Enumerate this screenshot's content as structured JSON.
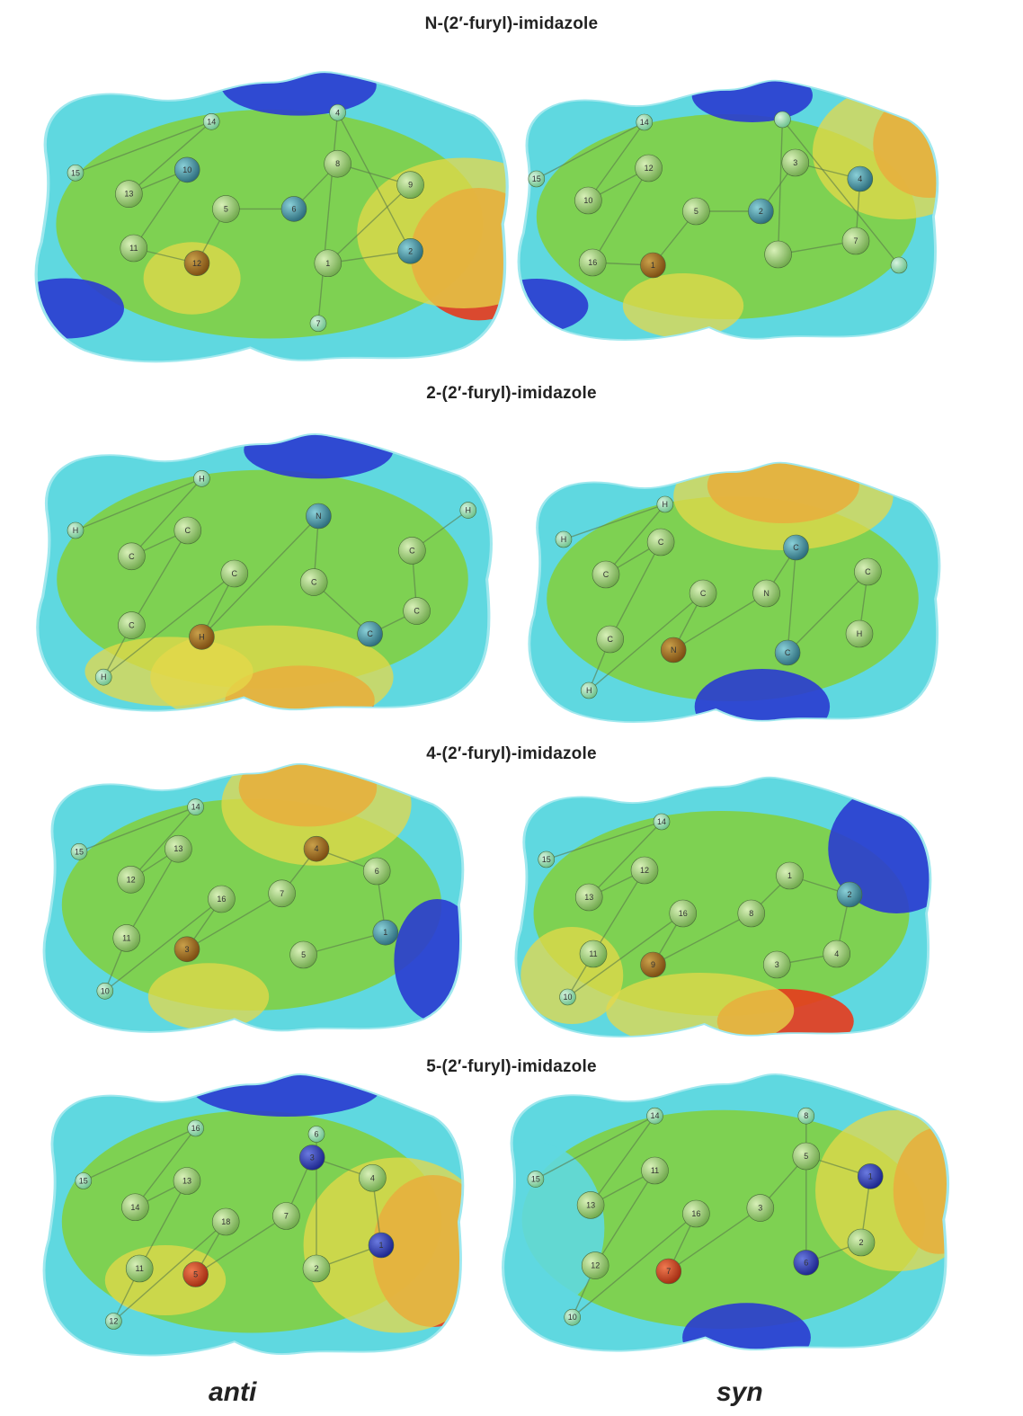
{
  "rows": [
    {
      "title": "N-(2′-furyl)-imidazole"
    },
    {
      "title": "2-(2′-furyl)-imidazole"
    },
    {
      "title": "4-(2′-furyl)-imidazole"
    },
    {
      "title": "5-(2′-furyl)-imidazole"
    }
  ],
  "captions": {
    "left": "anti",
    "right": "syn"
  },
  "colors": {
    "red": "#e83a1c",
    "yellow": "#e6d84a",
    "green": "#7fd14a",
    "cyan": "#5fd8e0",
    "blue": "#2a3bd0",
    "carbon": "#8fc46a",
    "oxygen": "#9a6a1c",
    "nitrogen": "#3c8a9a",
    "hydrogen": "#8ad6a6"
  },
  "molecules": [
    {
      "labels": [
        "15",
        "14",
        "13",
        "10",
        "11",
        "12",
        "5",
        "6",
        "8",
        "9",
        "1",
        "2",
        "4",
        "7"
      ]
    },
    {
      "labels": [
        "15",
        "14",
        "10",
        "12",
        "16",
        "1",
        "5",
        "2",
        "3",
        "4",
        "7"
      ]
    },
    {
      "labels": [
        "H",
        "H",
        "C",
        "C",
        "C",
        "H",
        "C",
        "H",
        "N",
        "C",
        "C",
        "C",
        "C",
        "H"
      ]
    },
    {
      "labels": [
        "H",
        "H",
        "C",
        "C",
        "C",
        "H",
        "C",
        "N",
        "N",
        "C",
        "C",
        "C",
        "H"
      ]
    },
    {
      "labels": [
        "15",
        "14",
        "12",
        "13",
        "11",
        "10",
        "16",
        "3",
        "7",
        "4",
        "6",
        "1",
        "5"
      ]
    },
    {
      "labels": [
        "15",
        "14",
        "13",
        "12",
        "11",
        "10",
        "16",
        "9",
        "8",
        "1",
        "2",
        "4",
        "3"
      ]
    },
    {
      "labels": [
        "15",
        "16",
        "14",
        "13",
        "11",
        "12",
        "18",
        "5",
        "7",
        "3",
        "4",
        "1",
        "2",
        "6"
      ]
    },
    {
      "labels": [
        "15",
        "14",
        "13",
        "11",
        "12",
        "10",
        "16",
        "7",
        "3",
        "5",
        "1",
        "2",
        "6",
        "8"
      ]
    }
  ]
}
